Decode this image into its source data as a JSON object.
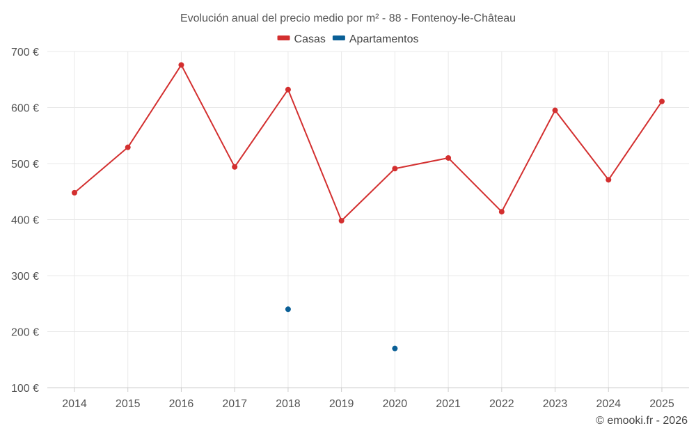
{
  "chart_data": {
    "type": "line",
    "title": "Evolución anual del precio medio por m² - 88 - Fontenoy-le-Château",
    "x": [
      "2014",
      "2015",
      "2016",
      "2017",
      "2018",
      "2019",
      "2020",
      "2021",
      "2022",
      "2023",
      "2024",
      "2025"
    ],
    "series": [
      {
        "name": "Casas",
        "color": "#d32f2f",
        "values": [
          448,
          529,
          676,
          494,
          632,
          398,
          491,
          510,
          414,
          595,
          471,
          611
        ]
      },
      {
        "name": "Apartamentos",
        "color": "#0a5f96",
        "values": [
          null,
          null,
          null,
          null,
          240,
          null,
          170,
          null,
          null,
          null,
          null,
          null
        ]
      }
    ],
    "ylim": [
      100,
      700
    ],
    "yticks": [
      100,
      200,
      300,
      400,
      500,
      600,
      700
    ],
    "ytick_labels": [
      "100 €",
      "200 €",
      "300 €",
      "400 €",
      "500 €",
      "600 €",
      "700 €"
    ],
    "grid": true,
    "legend": "top-center"
  },
  "credit": "© emooki.fr - 2026"
}
